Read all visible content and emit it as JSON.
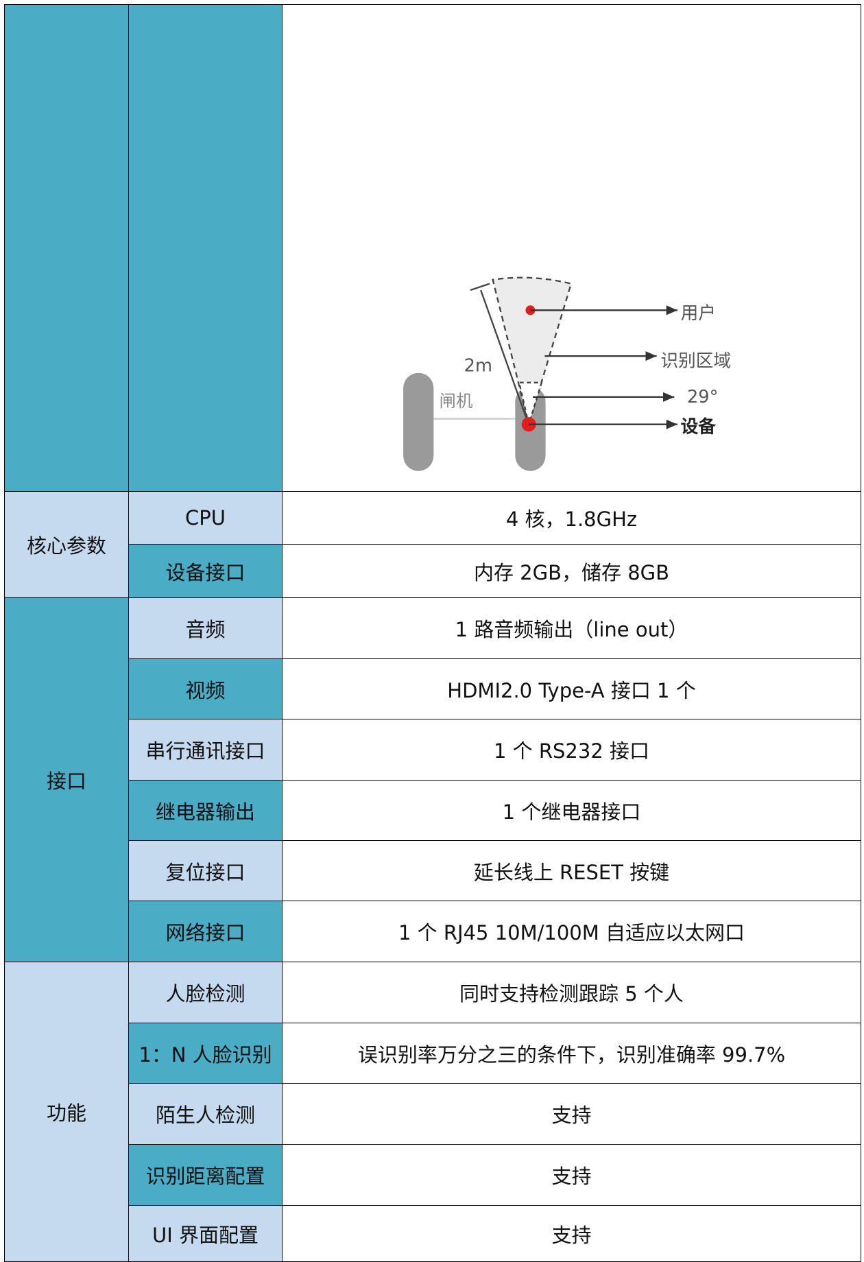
{
  "diagram": {
    "labels": {
      "user": "用户",
      "zone": "识别区域",
      "angle": "29°",
      "device": "设备",
      "distance": "2m",
      "gate": "闸机"
    }
  },
  "table": {
    "groups": [
      {
        "name": "核心参数",
        "rows": [
          [
            "CPU",
            "4 核，1.8GHz"
          ],
          [
            "设备接口",
            "内存 2GB，储存 8GB"
          ]
        ]
      },
      {
        "name": "接口",
        "rows": [
          [
            "音频",
            "1 路音频输出（line out）"
          ],
          [
            "视频",
            "HDMI2.0 Type-A 接口  1 个"
          ],
          [
            "串行通讯接口",
            "1 个 RS232 接口"
          ],
          [
            "继电器输出",
            "1 个继电器接口"
          ],
          [
            "复位接口",
            "延长线上 RESET 按键"
          ],
          [
            "网络接口",
            "1 个 RJ45 10M/100M 自适应以太网口"
          ]
        ]
      },
      {
        "name": "功能",
        "rows": [
          [
            "人脸检测",
            "同时支持检测跟踪 5 个人"
          ],
          [
            "1：N 人脸识别",
            "误识别率万分之三的条件下，识别准确率 99.7%"
          ],
          [
            "陌生人检测",
            "支持"
          ],
          [
            "识别距离配置",
            "支持"
          ],
          [
            "UI 界面配置",
            "支持"
          ]
        ]
      }
    ]
  }
}
